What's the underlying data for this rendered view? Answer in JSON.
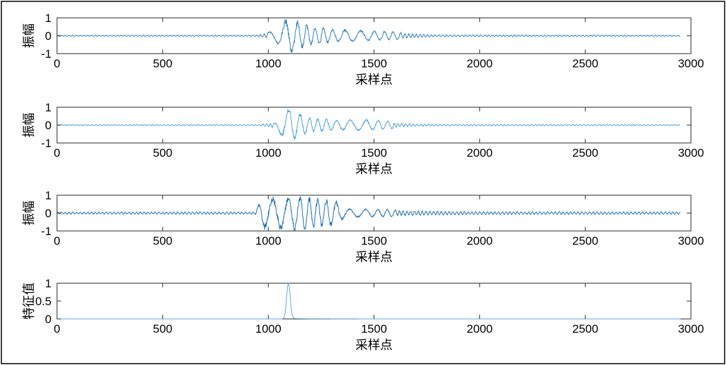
{
  "chart_data": [
    {
      "type": "line",
      "ylabel": "振幅",
      "xlabel": "采样点",
      "xlim": [
        0,
        3000
      ],
      "ylim": [
        -1,
        1
      ],
      "xticks": [
        "0",
        "500",
        "1000",
        "1500",
        "2000",
        "2500",
        "3000"
      ],
      "yticks": [
        "1",
        "0",
        "-1"
      ],
      "series_color": "#2f7fc1",
      "x_range": [
        0,
        2950
      ],
      "envelope": [
        {
          "x": 0,
          "amp": 0.05
        },
        {
          "x": 950,
          "amp": 0.06
        },
        {
          "x": 1030,
          "amp": 0.3
        },
        {
          "x": 1090,
          "amp": 1.0
        },
        {
          "x": 1200,
          "amp": 0.55
        },
        {
          "x": 1330,
          "amp": 0.35
        },
        {
          "x": 1600,
          "amp": 0.22
        },
        {
          "x": 1800,
          "amp": 0.08
        },
        {
          "x": 2950,
          "amp": 0.05
        }
      ],
      "series": [
        {
          "name": "",
          "values": []
        }
      ]
    },
    {
      "type": "line",
      "ylabel": "振幅",
      "xlabel": "采样点",
      "xlim": [
        0,
        3000
      ],
      "ylim": [
        -1,
        1
      ],
      "xticks": [
        "0",
        "500",
        "1000",
        "1500",
        "2000",
        "2500",
        "3000"
      ],
      "yticks": [
        "1",
        "0",
        "-1"
      ],
      "series_color": "#4f9fd6",
      "x_range": [
        0,
        2950
      ],
      "envelope": [
        {
          "x": 0,
          "amp": 0.03
        },
        {
          "x": 950,
          "amp": 0.04
        },
        {
          "x": 1030,
          "amp": 0.2
        },
        {
          "x": 1090,
          "amp": 1.0
        },
        {
          "x": 1200,
          "amp": 0.4
        },
        {
          "x": 1330,
          "amp": 0.3
        },
        {
          "x": 1500,
          "amp": 0.3
        },
        {
          "x": 1700,
          "amp": 0.08
        },
        {
          "x": 2950,
          "amp": 0.03
        }
      ],
      "series": [
        {
          "name": "",
          "values": []
        }
      ]
    },
    {
      "type": "line",
      "ylabel": "振幅",
      "xlabel": "采样点",
      "xlim": [
        0,
        3000
      ],
      "ylim": [
        -1,
        1
      ],
      "xticks": [
        "0",
        "500",
        "1000",
        "1500",
        "2000",
        "2500",
        "3000"
      ],
      "yticks": [
        "1",
        "0",
        "-1"
      ],
      "series_color": "#1f6fb3",
      "x_range": [
        0,
        2950
      ],
      "envelope": [
        {
          "x": 0,
          "amp": 0.09
        },
        {
          "x": 940,
          "amp": 0.1
        },
        {
          "x": 970,
          "amp": 0.85
        },
        {
          "x": 1130,
          "amp": 0.95
        },
        {
          "x": 1320,
          "amp": 0.7
        },
        {
          "x": 1360,
          "amp": 0.25
        },
        {
          "x": 1700,
          "amp": 0.18
        },
        {
          "x": 2000,
          "amp": 0.12
        },
        {
          "x": 2950,
          "amp": 0.1
        }
      ],
      "series": [
        {
          "name": "",
          "values": []
        }
      ]
    },
    {
      "type": "line",
      "ylabel": "特征值",
      "xlabel": "采样点",
      "xlim": [
        0,
        3000
      ],
      "ylim": [
        0,
        1
      ],
      "xticks": [
        "0",
        "500",
        "1000",
        "1500",
        "2000",
        "2500",
        "3000"
      ],
      "yticks": [
        "1",
        "0.5",
        "0"
      ],
      "series_color": "#5aaae0",
      "x_range": [
        0,
        2950
      ],
      "peak": {
        "x": 1095,
        "value": 1.0,
        "width": 12,
        "tail": 0.015
      },
      "series": [
        {
          "name": "",
          "values": []
        }
      ]
    }
  ]
}
